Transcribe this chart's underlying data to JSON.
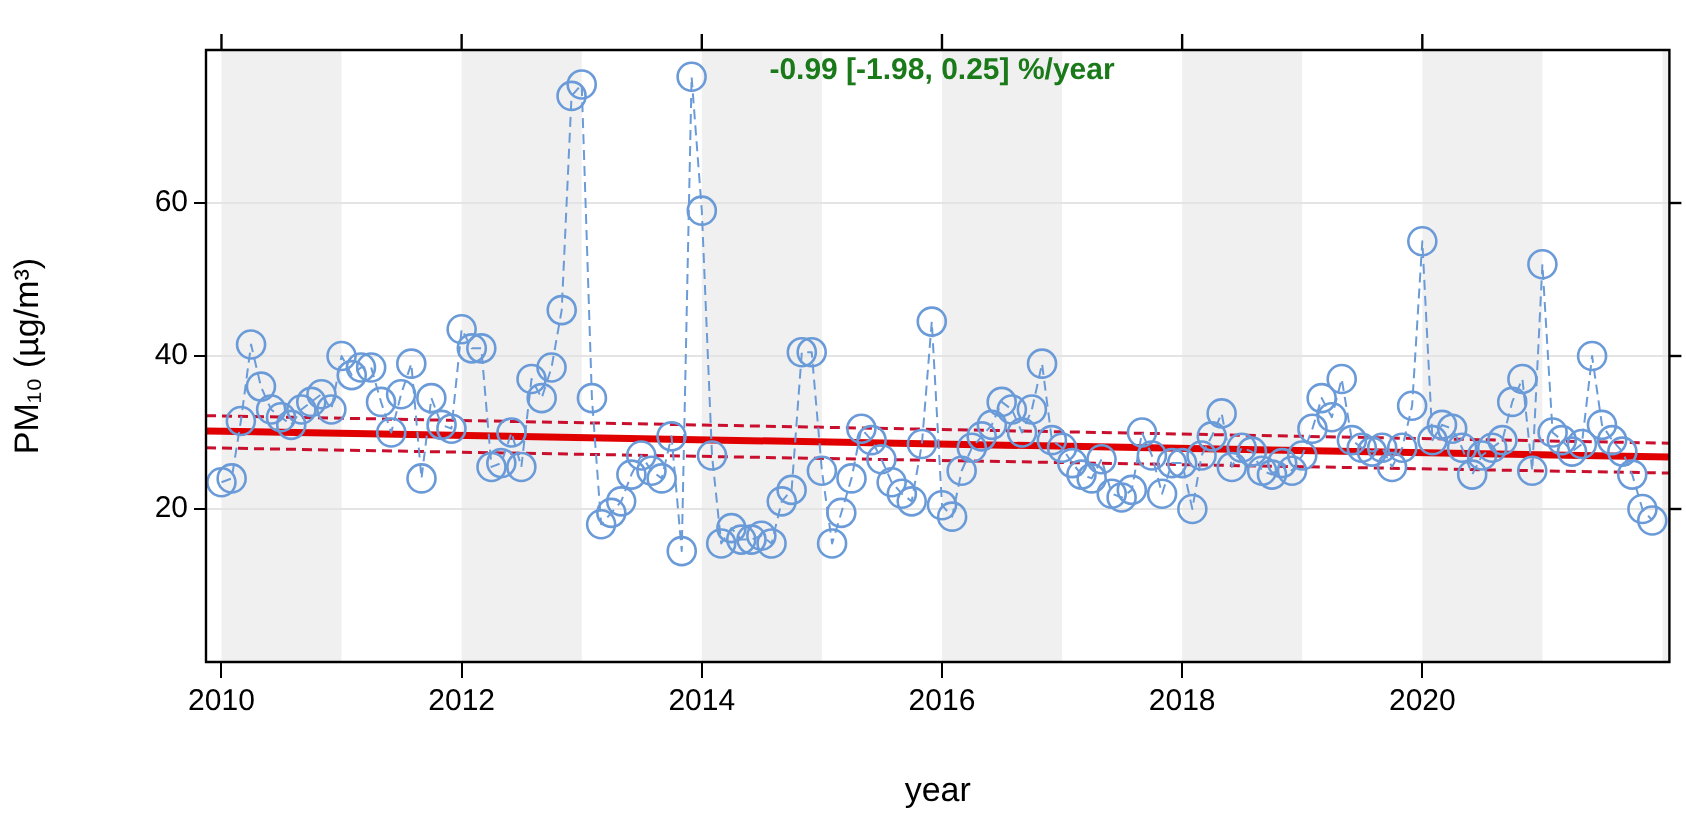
{
  "chart_data": {
    "type": "line",
    "xlabel": "year",
    "ylabel": "PM₁₀ (µg/m³)",
    "annotations": [
      "-0.99 [-1.98, 0.25] %/year"
    ],
    "x": [
      "2010-01",
      "2010-02",
      "2010-03",
      "2010-04",
      "2010-05",
      "2010-06",
      "2010-07",
      "2010-08",
      "2010-09",
      "2010-10",
      "2010-11",
      "2010-12",
      "2011-01",
      "2011-02",
      "2011-03",
      "2011-04",
      "2011-05",
      "2011-06",
      "2011-07",
      "2011-08",
      "2011-09",
      "2011-10",
      "2011-11",
      "2011-12",
      "2012-01",
      "2012-02",
      "2012-03",
      "2012-04",
      "2012-05",
      "2012-06",
      "2012-07",
      "2012-08",
      "2012-09",
      "2012-10",
      "2012-11",
      "2012-12",
      "2013-01",
      "2013-02",
      "2013-03",
      "2013-04",
      "2013-05",
      "2013-06",
      "2013-07",
      "2013-08",
      "2013-09",
      "2013-10",
      "2013-11",
      "2013-12",
      "2014-01",
      "2014-02",
      "2014-03",
      "2014-04",
      "2014-05",
      "2014-06",
      "2014-07",
      "2014-08",
      "2014-09",
      "2014-10",
      "2014-11",
      "2014-12",
      "2015-01",
      "2015-02",
      "2015-03",
      "2015-04",
      "2015-05",
      "2015-06",
      "2015-07",
      "2015-08",
      "2015-09",
      "2015-10",
      "2015-11",
      "2015-12",
      "2016-01",
      "2016-02",
      "2016-03",
      "2016-04",
      "2016-05",
      "2016-06",
      "2016-07",
      "2016-08",
      "2016-09",
      "2016-10",
      "2016-11",
      "2016-12",
      "2017-01",
      "2017-02",
      "2017-03",
      "2017-04",
      "2017-05",
      "2017-06",
      "2017-07",
      "2017-08",
      "2017-09",
      "2017-10",
      "2017-11",
      "2017-12",
      "2018-01",
      "2018-02",
      "2018-03",
      "2018-04",
      "2018-05",
      "2018-06",
      "2018-07",
      "2018-08",
      "2018-09",
      "2018-10",
      "2018-11",
      "2018-12",
      "2019-01",
      "2019-02",
      "2019-03",
      "2019-04",
      "2019-05",
      "2019-06",
      "2019-07",
      "2019-08",
      "2019-09",
      "2019-10",
      "2019-11",
      "2019-12",
      "2020-01",
      "2020-02",
      "2020-03",
      "2020-04",
      "2020-05",
      "2020-06",
      "2020-07",
      "2020-08",
      "2020-09",
      "2020-10",
      "2020-11",
      "2020-12",
      "2021-01",
      "2021-02",
      "2021-03",
      "2021-04",
      "2021-05",
      "2021-06",
      "2021-07",
      "2021-08",
      "2021-09",
      "2021-10",
      "2021-11",
      "2021-12"
    ],
    "xlim": [
      "2009-11-15",
      "2022-01-22"
    ],
    "xticks": [
      "2010",
      "2012",
      "2014",
      "2016",
      "2018",
      "2020"
    ],
    "ylim": [
      0,
      80
    ],
    "yticks": [
      20,
      40,
      60
    ],
    "grid": "y",
    "marker": "circle",
    "line_style": "dashed",
    "bands": [
      {
        "axis": "x",
        "from": "2010",
        "to": "2011",
        "color": "#f0f0f0"
      },
      {
        "axis": "x",
        "from": "2012",
        "to": "2013",
        "color": "#f0f0f0"
      },
      {
        "axis": "x",
        "from": "2014",
        "to": "2015",
        "color": "#f0f0f0"
      },
      {
        "axis": "x",
        "from": "2016",
        "to": "2017",
        "color": "#f0f0f0"
      },
      {
        "axis": "x",
        "from": "2018",
        "to": "2019",
        "color": "#f0f0f0"
      },
      {
        "axis": "x",
        "from": "2020",
        "to": "2021",
        "color": "#f0f0f0"
      },
      {
        "axis": "x",
        "from": "2022",
        "to": "2022-01-22",
        "color": "#f0f0f0"
      }
    ],
    "series": [
      {
        "color": "#6a9bd8",
        "values": [
          23.5,
          24,
          31.5,
          41.5,
          36,
          33,
          32,
          31,
          33,
          34,
          35,
          33,
          40,
          37.5,
          38.5,
          38.5,
          34,
          30,
          35,
          39,
          24,
          34.5,
          31,
          30.5,
          43.5,
          41,
          41,
          25.5,
          26,
          30,
          25.5,
          37,
          34.5,
          38.5,
          46,
          74,
          75.5,
          34.5,
          18,
          19.5,
          21,
          24.5,
          27,
          25,
          24,
          29.5,
          14.5,
          76.5,
          59,
          27,
          15.5,
          17.5,
          16,
          16,
          16.5,
          15.5,
          21,
          22.5,
          40.5,
          40.5,
          25,
          15.5,
          19.5,
          24,
          30.5,
          29,
          26.5,
          23.5,
          22,
          21,
          28.5,
          44.5,
          20.5,
          19,
          25,
          28,
          29.5,
          31,
          34,
          33,
          30,
          33,
          39,
          29,
          28,
          26,
          24.5,
          24,
          26.5,
          22,
          21.5,
          22.5,
          30,
          27,
          22,
          26,
          26,
          20,
          27,
          29.5,
          32.5,
          25.5,
          28,
          27.5,
          25,
          24.5,
          26,
          25,
          27,
          30.5,
          34.5,
          32,
          37,
          29,
          28,
          27.5,
          28,
          25.5,
          28,
          33.5,
          55,
          29,
          31,
          30.5,
          28,
          24.5,
          27,
          28,
          29,
          34,
          37,
          25,
          52,
          30,
          29,
          27.5,
          28.5,
          40,
          31,
          29,
          27.5,
          24.5,
          20,
          18.5
        ]
      },
      {
        "type": "line",
        "x": [
          "2009-11-15",
          "2022-01-22"
        ],
        "values": [
          30.2,
          26.8
        ],
        "color": "#e00000",
        "marker": "none",
        "line_style": "solid"
      },
      {
        "type": "line",
        "x": [
          "2009-11-15",
          "2022-01-22"
        ],
        "values": [
          32.2,
          28.6
        ],
        "color": "#c8102e",
        "marker": "none",
        "line_style": "dashed"
      },
      {
        "type": "line",
        "x": [
          "2009-11-15",
          "2022-01-22"
        ],
        "values": [
          28,
          24.7
        ],
        "color": "#c8102e",
        "marker": "none",
        "line_style": "dashed"
      }
    ]
  }
}
